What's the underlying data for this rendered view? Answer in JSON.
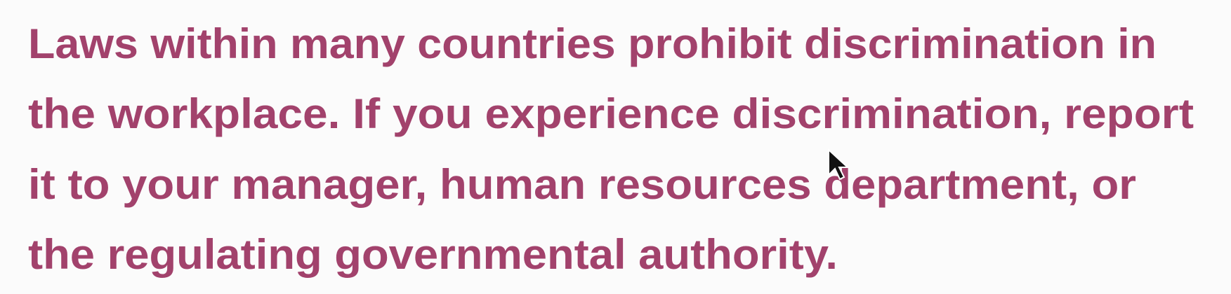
{
  "paragraph": {
    "lines": [
      "Laws within many countries prohibit discrimination in",
      "the workplace. If you experience discrimination, report",
      "it to your manager, human resources department, or",
      "the regulating governmental authority."
    ]
  }
}
